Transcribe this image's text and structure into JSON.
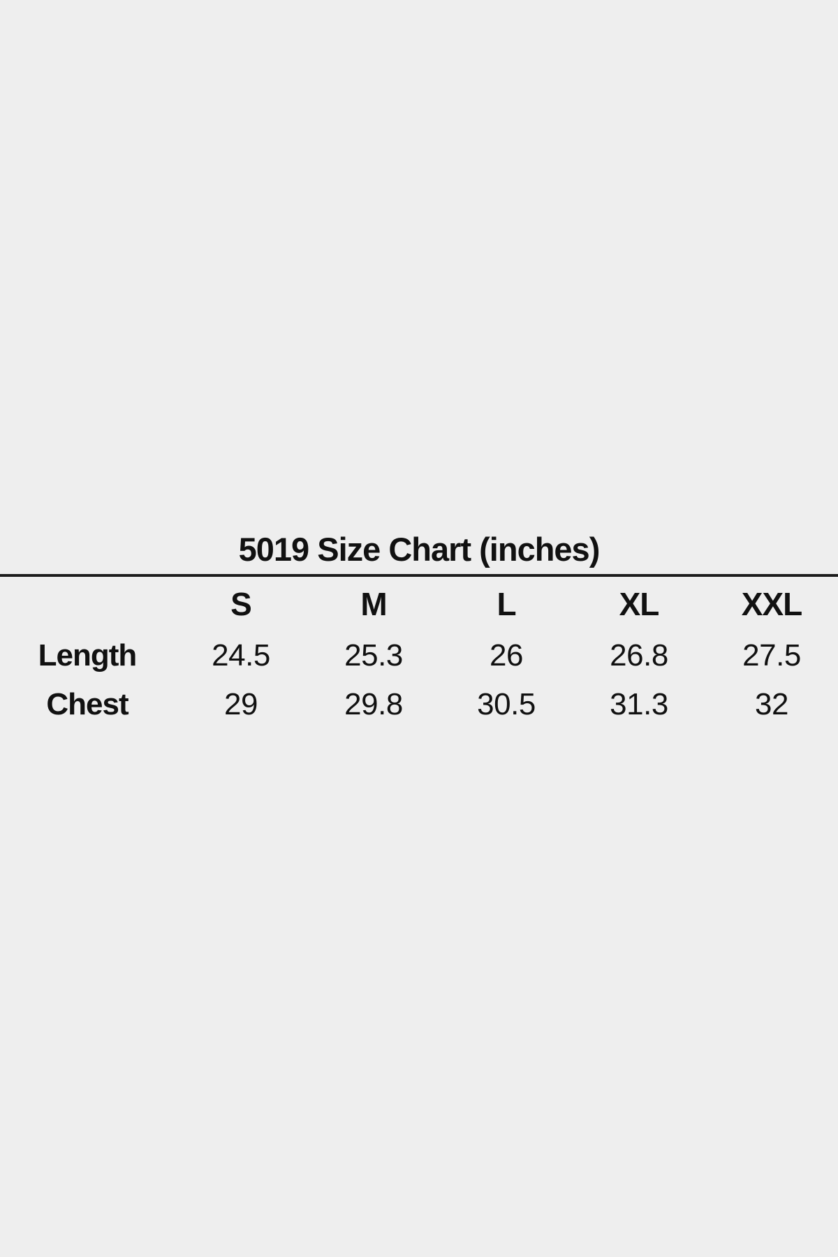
{
  "page": {
    "background_color": "#eeeeee",
    "text_color": "#111111",
    "rule_color": "#1c1c1c"
  },
  "size_chart": {
    "title": "5019 Size Chart (inches)",
    "columns": [
      "S",
      "M",
      "L",
      "XL",
      "XXL"
    ],
    "rows": [
      {
        "label": "Length",
        "values": [
          "24.5",
          "25.3",
          "26",
          "26.8",
          "27.5"
        ]
      },
      {
        "label": "Chest",
        "values": [
          "29",
          "29.8",
          "30.5",
          "31.3",
          "32"
        ]
      }
    ]
  },
  "chart_data": {
    "type": "table",
    "title": "5019 Size Chart (inches)",
    "units": "inches",
    "columns": [
      "S",
      "M",
      "L",
      "XL",
      "XXL"
    ],
    "rows": [
      {
        "label": "Length",
        "values": [
          24.5,
          25.3,
          26,
          26.8,
          27.5
        ]
      },
      {
        "label": "Chest",
        "values": [
          29,
          29.8,
          30.5,
          31.3,
          32
        ]
      }
    ]
  }
}
